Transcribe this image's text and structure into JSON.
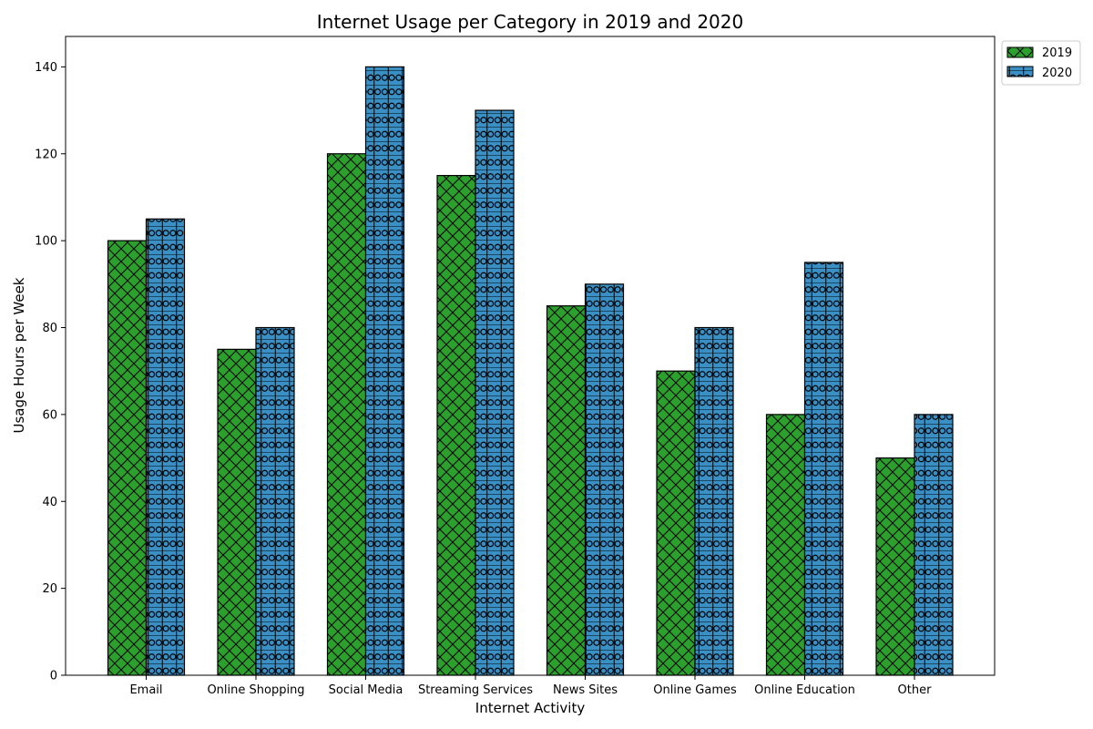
{
  "chart_data": {
    "type": "bar",
    "title": "Internet Usage per Category in 2019 and 2020",
    "xlabel": "Internet Activity",
    "ylabel": "Usage Hours per Week",
    "categories": [
      "Email",
      "Online Shopping",
      "Social Media",
      "Streaming Services",
      "News Sites",
      "Online Games",
      "Online Education",
      "Other"
    ],
    "series": [
      {
        "name": "2019",
        "values": [
          100,
          75,
          120,
          115,
          85,
          70,
          60,
          50
        ],
        "color": "#2ca02c",
        "hatch": "cross-diagonal"
      },
      {
        "name": "2020",
        "values": [
          105,
          80,
          140,
          130,
          90,
          80,
          95,
          60
        ],
        "color": "#3a8fc4",
        "hatch": "grid-circles"
      }
    ],
    "ylim": [
      0,
      147
    ],
    "yticks": [
      0,
      20,
      40,
      60,
      80,
      100,
      120,
      140
    ],
    "grid": false,
    "legend_position": "top-right-outside"
  }
}
